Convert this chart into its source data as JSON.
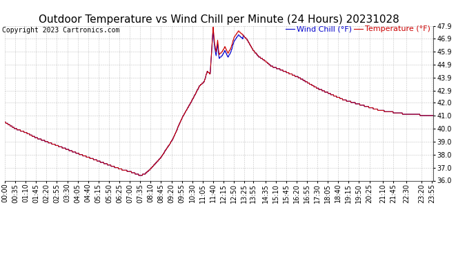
{
  "title": "Outdoor Temperature vs Wind Chill per Minute (24 Hours) 20231028",
  "copyright": "Copyright 2023 Cartronics.com",
  "legend_wind_chill": "Wind Chill (°F)",
  "legend_temperature": "Temperature (°F)",
  "wind_chill_color": "#0000cc",
  "temperature_color": "#cc0000",
  "background_color": "#ffffff",
  "plot_background": "#ffffff",
  "grid_color": "#999999",
  "ylim": [
    36.0,
    47.9
  ],
  "yticks": [
    36.0,
    37.0,
    38.0,
    39.0,
    40.0,
    41.0,
    42.0,
    42.9,
    43.9,
    44.9,
    45.9,
    46.9,
    47.9
  ],
  "title_fontsize": 11,
  "copyright_fontsize": 7,
  "legend_fontsize": 8,
  "tick_fontsize": 7,
  "line_width": 0.8
}
